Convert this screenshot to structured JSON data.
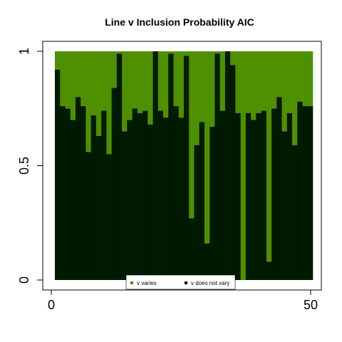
{
  "chart_data": {
    "type": "bar",
    "stacked": true,
    "title": "Line v Inclusion Probability AIC",
    "xlabel": "",
    "ylabel": "",
    "xlim": [
      1,
      50
    ],
    "ylim": [
      0,
      1
    ],
    "x_ticks": [
      0,
      50
    ],
    "y_ticks": [
      0,
      0.5,
      1
    ],
    "x_tick_labels": [
      "0",
      "50"
    ],
    "y_tick_labels": [
      "0",
      "0.5",
      "1"
    ],
    "grid": false,
    "legend_position": "bottom-center",
    "legend": [
      {
        "label": "v varies",
        "color": "#4f9000"
      },
      {
        "label": "v does not vary",
        "color": "#000000"
      }
    ],
    "colors": {
      "varies": "#4f9000",
      "does_not_vary": "#001a00"
    },
    "series": [
      {
        "name": "v does not vary",
        "values": [
          0.92,
          0.76,
          0.75,
          0.7,
          0.8,
          0.76,
          0.56,
          0.72,
          0.63,
          0.74,
          0.55,
          0.84,
          0.99,
          0.65,
          0.7,
          0.75,
          0.73,
          0.74,
          0.68,
          1.0,
          0.74,
          0.71,
          0.99,
          0.76,
          0.71,
          0.98,
          0.27,
          0.59,
          0.69,
          0.16,
          0.67,
          0.99,
          0.74,
          1.0,
          0.94,
          0.73,
          0.0,
          0.73,
          0.7,
          0.73,
          0.74,
          0.08,
          0.75,
          0.8,
          0.65,
          0.73,
          0.59,
          0.78,
          0.76,
          0.76
        ]
      },
      {
        "name": "v varies",
        "values": [
          0.08,
          0.24,
          0.25,
          0.3,
          0.2,
          0.24,
          0.44,
          0.28,
          0.37,
          0.26,
          0.45,
          0.16,
          0.01,
          0.35,
          0.3,
          0.25,
          0.27,
          0.26,
          0.32,
          0.0,
          0.26,
          0.29,
          0.01,
          0.24,
          0.29,
          0.02,
          0.73,
          0.41,
          0.31,
          0.84,
          0.33,
          0.01,
          0.26,
          0.0,
          0.06,
          0.27,
          1.0,
          0.27,
          0.3,
          0.27,
          0.26,
          0.92,
          0.25,
          0.2,
          0.35,
          0.27,
          0.41,
          0.22,
          0.24,
          0.24
        ]
      }
    ]
  }
}
